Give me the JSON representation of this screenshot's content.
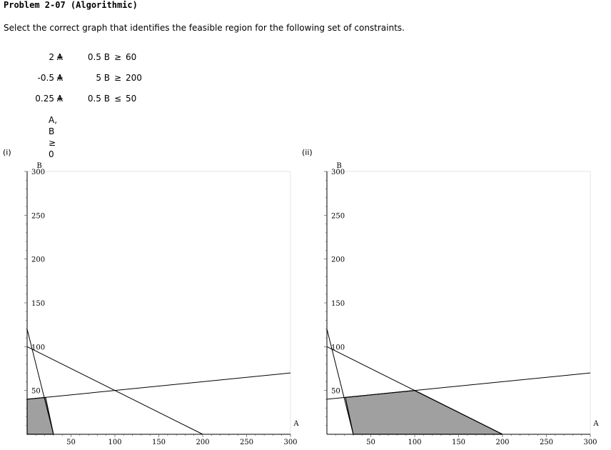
{
  "problem": {
    "title": "Problem 2-07 (Algorithmic)",
    "instruction": "Select the correct graph that identifies the feasible region for the following set of constraints."
  },
  "constraints": [
    {
      "a": "2 A",
      "op": "+",
      "b": "0.5 B",
      "ineq": "≥",
      "rhs": "60"
    },
    {
      "a": "-0.5 A",
      "op": "+",
      "b": "5 B",
      "ineq": "≥",
      "rhs": "200"
    },
    {
      "a": "0.25 A",
      "op": "+",
      "b": "0.5 B",
      "ineq": "≤",
      "rhs": "50"
    }
  ],
  "nonnegativity": "A, B ≥ 0",
  "chart_data": [
    {
      "type": "line",
      "label": "(i)",
      "xlabel": "A",
      "ylabel": "B",
      "xlim": [
        0,
        300
      ],
      "ylim": [
        0,
        300
      ],
      "x_ticks": [
        50,
        100,
        150,
        200,
        250,
        300
      ],
      "y_ticks": [
        50,
        100,
        150,
        200,
        250,
        300
      ],
      "lines": [
        {
          "points": [
            [
              0,
              120
            ],
            [
              30,
              0
            ]
          ]
        },
        {
          "points": [
            [
              0,
              40
            ],
            [
              300,
              70
            ]
          ]
        },
        {
          "points": [
            [
              0,
              100
            ],
            [
              200,
              0
            ]
          ]
        }
      ],
      "shaded_region": [
        [
          0,
          0
        ],
        [
          30,
          0
        ],
        [
          21.0,
          42.1
        ],
        [
          0,
          40
        ]
      ],
      "region_color": "#a0a0a0"
    },
    {
      "type": "line",
      "label": "(ii)",
      "xlabel": "A",
      "ylabel": "B",
      "xlim": [
        0,
        300
      ],
      "ylim": [
        0,
        300
      ],
      "x_ticks": [
        50,
        100,
        150,
        200,
        250,
        300
      ],
      "y_ticks": [
        50,
        100,
        150,
        200,
        250,
        300
      ],
      "lines": [
        {
          "points": [
            [
              0,
              120
            ],
            [
              30,
              0
            ]
          ]
        },
        {
          "points": [
            [
              0,
              40
            ],
            [
              300,
              70
            ]
          ]
        },
        {
          "points": [
            [
              0,
              100
            ],
            [
              200,
              0
            ]
          ]
        }
      ],
      "shaded_region": [
        [
          30,
          0
        ],
        [
          200,
          0
        ],
        [
          100,
          50
        ],
        [
          21.0,
          42.1
        ]
      ],
      "region_color": "#a0a0a0"
    }
  ]
}
